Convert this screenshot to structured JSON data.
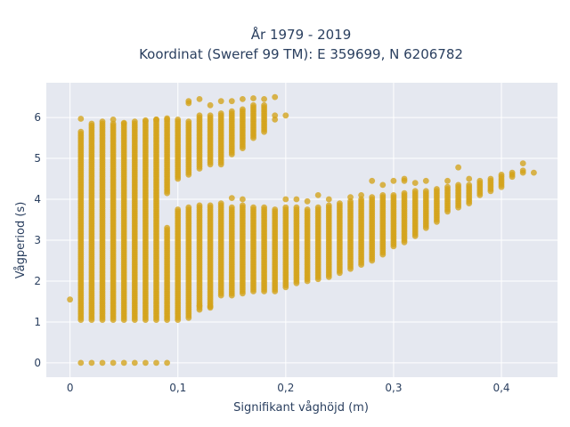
{
  "chart_data": {
    "type": "scatter",
    "title_line1": "År 1979 - 2019",
    "title_line2": "Koordinat (Sweref 99 TM): E 359699, N 6206782",
    "xlabel": "Signifikant våghöjd (m)",
    "ylabel": "Vågperiod (s)",
    "xlim": [
      -0.022,
      0.452
    ],
    "ylim": [
      -0.35,
      6.85
    ],
    "x_ticks": [
      0,
      0.1,
      0.2,
      0.3,
      0.4
    ],
    "x_tick_labels": [
      "0",
      "0,1",
      "0,2",
      "0,3",
      "0,4"
    ],
    "y_ticks": [
      0,
      1,
      2,
      3,
      4,
      5,
      6
    ],
    "y_tick_labels": [
      "0",
      "1",
      "2",
      "3",
      "4",
      "5",
      "6"
    ],
    "grid": true,
    "marker_color": "#d4a31a",
    "plot_background": "#e5e8f0",
    "columns": [
      {
        "x": 0.0,
        "segments": [],
        "extra": [
          1.55
        ]
      },
      {
        "x": 0.01,
        "segments": [
          [
            1.05,
            5.65
          ]
        ],
        "extra": [
          0,
          5.97
        ]
      },
      {
        "x": 0.02,
        "segments": [
          [
            1.05,
            5.8
          ]
        ],
        "extra": [
          0,
          5.85
        ]
      },
      {
        "x": 0.03,
        "segments": [
          [
            1.05,
            5.85
          ]
        ],
        "extra": [
          0,
          5.9
        ]
      },
      {
        "x": 0.04,
        "segments": [
          [
            1.05,
            5.85
          ]
        ],
        "extra": [
          0,
          5.95
        ]
      },
      {
        "x": 0.05,
        "segments": [
          [
            1.05,
            5.85
          ]
        ],
        "extra": [
          0,
          5.87
        ]
      },
      {
        "x": 0.06,
        "segments": [
          [
            1.05,
            5.85
          ]
        ],
        "extra": [
          0,
          5.9
        ]
      },
      {
        "x": 0.07,
        "segments": [
          [
            1.05,
            5.9
          ]
        ],
        "extra": [
          0,
          5.93
        ]
      },
      {
        "x": 0.08,
        "segments": [
          [
            1.05,
            5.95
          ]
        ],
        "extra": [
          0,
          5.95
        ]
      },
      {
        "x": 0.09,
        "segments": [
          [
            1.05,
            3.3
          ],
          [
            4.15,
            5.95
          ]
        ],
        "extra": [
          0,
          5.98
        ]
      },
      {
        "x": 0.1,
        "segments": [
          [
            1.05,
            3.75
          ],
          [
            4.5,
            5.95
          ]
        ],
        "extra": []
      },
      {
        "x": 0.11,
        "segments": [
          [
            1.1,
            3.8
          ],
          [
            4.6,
            5.9
          ]
        ],
        "extra": [
          6.35,
          6.4
        ]
      },
      {
        "x": 0.12,
        "segments": [
          [
            1.3,
            3.85
          ],
          [
            4.75,
            6.05
          ]
        ],
        "extra": [
          1.4,
          6.45
        ]
      },
      {
        "x": 0.13,
        "segments": [
          [
            1.35,
            3.85
          ],
          [
            4.85,
            6.05
          ]
        ],
        "extra": [
          1.38,
          6.3
        ]
      },
      {
        "x": 0.14,
        "segments": [
          [
            1.65,
            3.9
          ],
          [
            4.85,
            6.1
          ]
        ],
        "extra": [
          6.4
        ]
      },
      {
        "x": 0.15,
        "segments": [
          [
            1.65,
            3.8
          ],
          [
            5.1,
            6.15
          ]
        ],
        "extra": [
          4.03,
          6.4
        ]
      },
      {
        "x": 0.16,
        "segments": [
          [
            1.7,
            3.85
          ],
          [
            5.25,
            6.2
          ]
        ],
        "extra": [
          4.0,
          6.45
        ]
      },
      {
        "x": 0.17,
        "segments": [
          [
            1.75,
            3.8
          ],
          [
            5.5,
            6.3
          ]
        ],
        "extra": [
          6.47
        ]
      },
      {
        "x": 0.18,
        "segments": [
          [
            1.75,
            3.8
          ],
          [
            5.65,
            6.3
          ]
        ],
        "extra": [
          6.45
        ]
      },
      {
        "x": 0.19,
        "segments": [
          [
            1.75,
            3.75
          ]
        ],
        "extra": [
          5.95,
          6.05,
          6.5
        ]
      },
      {
        "x": 0.2,
        "segments": [
          [
            1.85,
            3.8
          ]
        ],
        "extra": [
          4.0,
          6.05
        ]
      },
      {
        "x": 0.21,
        "segments": [
          [
            1.95,
            3.8
          ]
        ],
        "extra": [
          4.0
        ]
      },
      {
        "x": 0.22,
        "segments": [
          [
            2.0,
            3.75
          ]
        ],
        "extra": [
          3.95
        ]
      },
      {
        "x": 0.23,
        "segments": [
          [
            2.05,
            3.8
          ]
        ],
        "extra": [
          4.1
        ]
      },
      {
        "x": 0.24,
        "segments": [
          [
            2.1,
            3.85
          ]
        ],
        "extra": [
          4.0
        ]
      },
      {
        "x": 0.25,
        "segments": [
          [
            2.2,
            3.9
          ]
        ],
        "extra": []
      },
      {
        "x": 0.26,
        "segments": [
          [
            2.3,
            3.95
          ]
        ],
        "extra": [
          4.05
        ]
      },
      {
        "x": 0.27,
        "segments": [
          [
            2.4,
            4.0
          ]
        ],
        "extra": [
          4.1
        ]
      },
      {
        "x": 0.28,
        "segments": [
          [
            2.5,
            4.05
          ]
        ],
        "extra": [
          4.45
        ]
      },
      {
        "x": 0.29,
        "segments": [
          [
            2.65,
            4.1
          ]
        ],
        "extra": [
          4.35
        ]
      },
      {
        "x": 0.3,
        "segments": [
          [
            2.85,
            4.1
          ]
        ],
        "extra": [
          4.45
        ]
      },
      {
        "x": 0.31,
        "segments": [
          [
            2.95,
            4.15
          ]
        ],
        "extra": [
          4.45,
          4.5
        ]
      },
      {
        "x": 0.32,
        "segments": [
          [
            3.1,
            4.2
          ]
        ],
        "extra": [
          4.4
        ]
      },
      {
        "x": 0.33,
        "segments": [
          [
            3.3,
            4.2
          ]
        ],
        "extra": [
          4.45
        ]
      },
      {
        "x": 0.34,
        "segments": [
          [
            3.45,
            4.25
          ]
        ],
        "extra": []
      },
      {
        "x": 0.35,
        "segments": [
          [
            3.7,
            4.3
          ]
        ],
        "extra": [
          4.45
        ]
      },
      {
        "x": 0.36,
        "segments": [
          [
            3.8,
            4.35
          ]
        ],
        "extra": [
          4.78
        ]
      },
      {
        "x": 0.37,
        "segments": [
          [
            3.9,
            4.35
          ]
        ],
        "extra": [
          4.5
        ]
      },
      {
        "x": 0.38,
        "segments": [
          [
            4.1,
            4.45
          ]
        ],
        "extra": []
      },
      {
        "x": 0.39,
        "segments": [
          [
            4.2,
            4.5
          ]
        ],
        "extra": []
      },
      {
        "x": 0.4,
        "segments": [
          [
            4.3,
            4.6
          ]
        ],
        "extra": []
      },
      {
        "x": 0.41,
        "segments": [
          [
            4.55,
            4.65
          ]
        ],
        "extra": []
      },
      {
        "x": 0.42,
        "segments": [
          [
            4.65,
            4.7
          ]
        ],
        "extra": [
          4.88
        ]
      },
      {
        "x": 0.43,
        "segments": [],
        "extra": [
          4.65
        ]
      }
    ]
  }
}
